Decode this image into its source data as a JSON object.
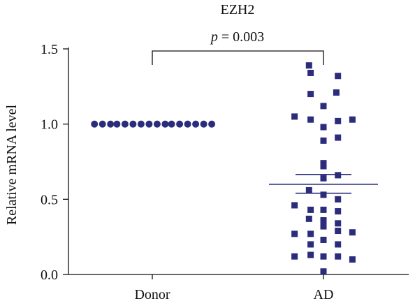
{
  "chart_data": {
    "type": "scatter",
    "title": "EZH2",
    "annotation": "p = 0.003",
    "annotation_p": "p",
    "annotation_rest": " = 0.003",
    "xlabel": "",
    "ylabel": "Relative mRNA level",
    "categories": [
      "Donor",
      "AD"
    ],
    "ylim": [
      0,
      1.5
    ],
    "yticks": [
      "0.0",
      "0.5",
      "1.0",
      "1.5"
    ],
    "ytick_values": [
      0,
      0.5,
      1.0,
      1.5
    ],
    "legend": "none",
    "grid": false,
    "marker_color": "#2b2c7c",
    "series": [
      {
        "category": "Donor",
        "marker": "circle",
        "points": [
          {
            "x": -0.36,
            "y": 1.0
          },
          {
            "x": -0.31,
            "y": 1.0
          },
          {
            "x": -0.26,
            "y": 1.0
          },
          {
            "x": -0.22,
            "y": 1.0
          },
          {
            "x": -0.17,
            "y": 1.0
          },
          {
            "x": -0.12,
            "y": 1.0
          },
          {
            "x": -0.07,
            "y": 1.0
          },
          {
            "x": -0.02,
            "y": 1.0
          },
          {
            "x": 0.03,
            "y": 1.0
          },
          {
            "x": 0.08,
            "y": 1.0
          },
          {
            "x": 0.12,
            "y": 1.0
          },
          {
            "x": 0.17,
            "y": 1.0
          },
          {
            "x": 0.22,
            "y": 1.0
          },
          {
            "x": 0.27,
            "y": 1.0
          },
          {
            "x": 0.32,
            "y": 1.0
          },
          {
            "x": 0.37,
            "y": 1.0
          }
        ]
      },
      {
        "category": "AD",
        "marker": "square",
        "mean": 0.6,
        "sem_upper": 0.665,
        "sem_lower": 0.54,
        "points": [
          {
            "x": -0.09,
            "y": 1.39
          },
          {
            "x": -0.08,
            "y": 1.34
          },
          {
            "x": 0.09,
            "y": 1.32
          },
          {
            "x": -0.08,
            "y": 1.2
          },
          {
            "x": 0.08,
            "y": 1.21
          },
          {
            "x": 0.0,
            "y": 1.12
          },
          {
            "x": -0.18,
            "y": 1.05
          },
          {
            "x": -0.08,
            "y": 1.03
          },
          {
            "x": 0.09,
            "y": 1.02
          },
          {
            "x": 0.18,
            "y": 1.03
          },
          {
            "x": 0.0,
            "y": 0.98
          },
          {
            "x": 0.09,
            "y": 0.91
          },
          {
            "x": 0.0,
            "y": 0.89
          },
          {
            "x": 0.0,
            "y": 0.74
          },
          {
            "x": 0.0,
            "y": 0.72
          },
          {
            "x": 0.09,
            "y": 0.66
          },
          {
            "x": 0.0,
            "y": 0.64
          },
          {
            "x": -0.09,
            "y": 0.56
          },
          {
            "x": 0.0,
            "y": 0.53
          },
          {
            "x": 0.09,
            "y": 0.5
          },
          {
            "x": -0.18,
            "y": 0.46
          },
          {
            "x": -0.08,
            "y": 0.43
          },
          {
            "x": 0.0,
            "y": 0.43
          },
          {
            "x": 0.09,
            "y": 0.42
          },
          {
            "x": -0.09,
            "y": 0.37
          },
          {
            "x": 0.0,
            "y": 0.36
          },
          {
            "x": 0.09,
            "y": 0.34
          },
          {
            "x": 0.0,
            "y": 0.32
          },
          {
            "x": -0.18,
            "y": 0.27
          },
          {
            "x": -0.08,
            "y": 0.27
          },
          {
            "x": 0.09,
            "y": 0.29
          },
          {
            "x": 0.18,
            "y": 0.28
          },
          {
            "x": -0.08,
            "y": 0.2
          },
          {
            "x": 0.0,
            "y": 0.23
          },
          {
            "x": 0.09,
            "y": 0.2
          },
          {
            "x": -0.18,
            "y": 0.12
          },
          {
            "x": -0.08,
            "y": 0.13
          },
          {
            "x": 0.0,
            "y": 0.12
          },
          {
            "x": 0.09,
            "y": 0.12
          },
          {
            "x": 0.18,
            "y": 0.1
          },
          {
            "x": 0.0,
            "y": 0.02
          }
        ]
      }
    ]
  }
}
